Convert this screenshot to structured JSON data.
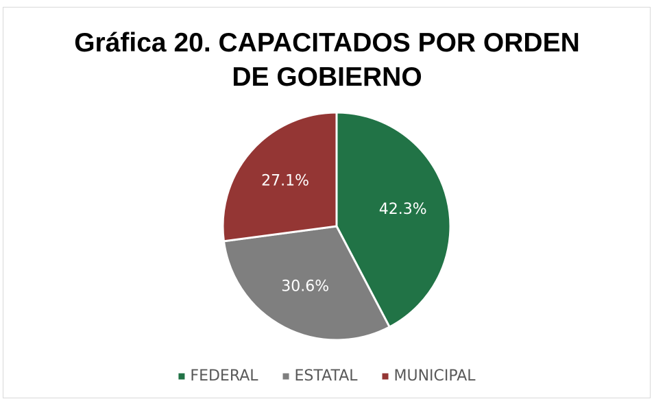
{
  "chart_data": {
    "type": "pie",
    "title": "Gráfica 20. CAPACITADOS POR ORDEN DE GOBIERNO",
    "categories": [
      "FEDERAL",
      "ESTATAL",
      "MUNICIPAL"
    ],
    "values": [
      42.3,
      30.6,
      27.1
    ],
    "value_labels": [
      "42.3%",
      "30.6%",
      "27.1%"
    ],
    "colors": [
      "#217346",
      "#7f7f7f",
      "#943634"
    ],
    "legend": "bottom"
  }
}
